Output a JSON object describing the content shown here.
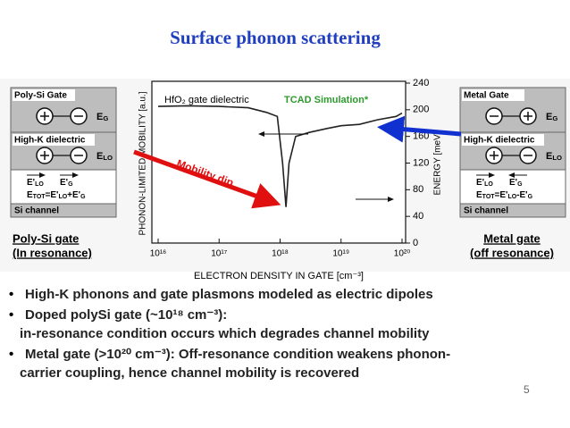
{
  "title": "Surface phonon scattering",
  "left_panel": {
    "gate": "Poly-Si Gate",
    "e_gate": [
      "E",
      "G"
    ],
    "dielectric": "High-K dielectric",
    "e_lo": [
      "E",
      "LO"
    ],
    "e_lo_prime": [
      "E'",
      "LO"
    ],
    "e_g_prime": [
      "E'",
      "G"
    ],
    "e_tot": [
      "E",
      "TOT",
      "=E'",
      "LO",
      "+E'",
      "G"
    ],
    "channel": "Si channel",
    "caption": [
      "Poly-Si gate",
      "(In resonance)"
    ]
  },
  "right_panel": {
    "gate": "Metal Gate",
    "e_gate": [
      "E",
      "G"
    ],
    "dielectric": "High-K dielectric",
    "e_lo": [
      "E",
      "LO"
    ],
    "e_lo_prime": [
      "E'",
      "LO"
    ],
    "e_g_prime": [
      "E'",
      "G"
    ],
    "e_tot": [
      "E",
      "TOT",
      "=E'",
      "LO",
      "-E'",
      "G"
    ],
    "channel": "Si channel",
    "caption": [
      "Metal gate",
      "(off resonance)"
    ]
  },
  "chart_data": {
    "type": "line",
    "x_scale": "log",
    "x_label": "ELECTRON DENSITY IN GATE [cm⁻³]",
    "y_label": "PHONON-LIMITED MOBILITY [a.u.]",
    "y2_label": "ENERGY [meV]",
    "annotations": [
      "HfO₂ gate dielectric",
      "TCAD Simulation*",
      "Mobility dip"
    ],
    "x": [
      1e+16,
      3e+16,
      1e+17,
      3e+17,
      6e+17,
      9e+17,
      1.1e+18,
      1.25e+18,
      1.4e+18,
      1.8e+18,
      3e+18,
      6e+18,
      1e+19,
      2e+19,
      4e+19,
      8e+19,
      1e+20
    ],
    "values": [
      205,
      206,
      205,
      203,
      196,
      190,
      120,
      54,
      120,
      160,
      166,
      172,
      176,
      178,
      185,
      190,
      195
    ],
    "color": "#222222",
    "xlim": [
      1e+16,
      1e+20
    ],
    "xticks": [
      {
        "value": 1e+16,
        "label": "10¹⁶"
      },
      {
        "value": 1e+17,
        "label": "10¹⁷"
      },
      {
        "value": 1e+18,
        "label": "10¹⁸"
      },
      {
        "value": 1e+19,
        "label": "10¹⁹"
      },
      {
        "value": 1e+20,
        "label": "10²⁰"
      }
    ],
    "ylim": [
      0,
      240
    ],
    "yticks": [
      0,
      40,
      80,
      120,
      160,
      200,
      240
    ],
    "y_axis_side": "right"
  },
  "bullets": [
    [
      "High-K phonons and gate plasmons modeled as electric dipoles"
    ],
    [
      "Doped polySi gate (~10¹⁸ cm⁻³):",
      "in-resonance condition occurs which degrades channel mobility"
    ],
    [
      "Metal gate (>10²⁰ cm⁻³): Off-resonance condition weakens phonon-",
      "carrier coupling, hence channel mobility is recovered"
    ]
  ],
  "page_number": "5"
}
